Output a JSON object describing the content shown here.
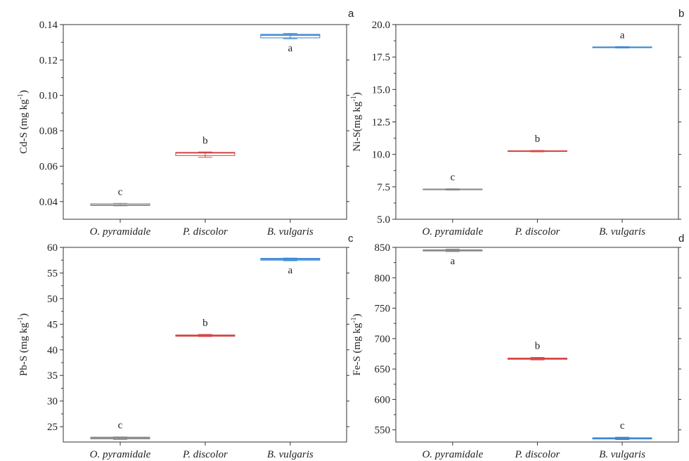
{
  "chart_data": [
    {
      "type": "box",
      "panel": "a",
      "ylabel_main": "Cd-S (mg kg",
      "ylabel_sup": "-1",
      "ylabel_close": ")",
      "categories": [
        "O. pyramidale",
        "P. discolor",
        "B. vulgaris"
      ],
      "ylim": [
        0.03,
        0.14
      ],
      "yticks": [
        "0.04",
        "0.06",
        "0.08",
        "0.10",
        "0.12",
        "0.14"
      ],
      "ytick_values": [
        0.04,
        0.06,
        0.08,
        0.1,
        0.12,
        0.14
      ],
      "boxes": [
        {
          "median": 0.038,
          "q1": 0.0378,
          "q3": 0.0388,
          "min": 0.0376,
          "max": 0.039,
          "color": "#888888",
          "label": "c",
          "label_pos": "above"
        },
        {
          "median": 0.0675,
          "q1": 0.066,
          "q3": 0.0678,
          "min": 0.065,
          "max": 0.068,
          "color": "#d64545",
          "label": "b",
          "label_pos": "above"
        },
        {
          "median": 0.134,
          "q1": 0.1325,
          "q3": 0.1345,
          "min": 0.132,
          "max": 0.135,
          "color": "#3a86d4",
          "label": "a",
          "label_pos": "below"
        }
      ]
    },
    {
      "type": "box",
      "panel": "b",
      "ylabel_main": "Ni-S(mg kg",
      "ylabel_sup": "-1",
      "ylabel_close": ")",
      "categories": [
        "O. pyramidale",
        "P. discolor",
        "B. vulgaris"
      ],
      "ylim": [
        5.0,
        20.0
      ],
      "yticks": [
        "5.0",
        "7.5",
        "10.0",
        "12.5",
        "15.0",
        "17.5",
        "20.0"
      ],
      "ytick_values": [
        5.0,
        7.5,
        10.0,
        12.5,
        15.0,
        17.5,
        20.0
      ],
      "boxes": [
        {
          "median": 7.3,
          "q1": 7.27,
          "q3": 7.33,
          "min": 7.25,
          "max": 7.35,
          "color": "#888888",
          "label": "c",
          "label_pos": "above"
        },
        {
          "median": 10.25,
          "q1": 10.22,
          "q3": 10.28,
          "min": 10.2,
          "max": 10.3,
          "color": "#d64545",
          "label": "b",
          "label_pos": "above"
        },
        {
          "median": 18.25,
          "q1": 18.22,
          "q3": 18.28,
          "min": 18.2,
          "max": 18.3,
          "color": "#3a86d4",
          "label": "a",
          "label_pos": "above"
        }
      ]
    },
    {
      "type": "box",
      "panel": "c",
      "ylabel_main": "Pb-S (mg kg",
      "ylabel_sup": "-1",
      "ylabel_close": ")",
      "categories": [
        "O. pyramidale",
        "P. discolor",
        "B. vulgaris"
      ],
      "ylim": [
        22,
        60
      ],
      "yticks": [
        "25",
        "30",
        "35",
        "40",
        "45",
        "50",
        "55",
        "60"
      ],
      "ytick_values": [
        25,
        30,
        35,
        40,
        45,
        50,
        55,
        60
      ],
      "boxes": [
        {
          "median": 22.8,
          "q1": 22.6,
          "q3": 22.95,
          "min": 22.5,
          "max": 23.0,
          "color": "#888888",
          "label": "c",
          "label_pos": "above"
        },
        {
          "median": 42.8,
          "q1": 42.65,
          "q3": 42.9,
          "min": 42.6,
          "max": 43.0,
          "color": "#d64545",
          "label": "b",
          "label_pos": "above"
        },
        {
          "median": 57.7,
          "q1": 57.5,
          "q3": 57.85,
          "min": 57.4,
          "max": 57.9,
          "color": "#3a86d4",
          "label": "a",
          "label_pos": "below"
        }
      ]
    },
    {
      "type": "box",
      "panel": "d",
      "ylabel_main": "Fe-S (mg kg",
      "ylabel_sup": "-1",
      "ylabel_close": ")",
      "categories": [
        "O. pyramidale",
        "P. discolor",
        "B. vulgaris"
      ],
      "ylim": [
        530,
        850
      ],
      "yticks": [
        "550",
        "600",
        "650",
        "700",
        "750",
        "800",
        "850"
      ],
      "ytick_values": [
        550,
        600,
        650,
        700,
        750,
        800,
        850
      ],
      "boxes": [
        {
          "median": 845,
          "q1": 844,
          "q3": 846,
          "min": 843,
          "max": 847,
          "color": "#888888",
          "label": "a",
          "label_pos": "below"
        },
        {
          "median": 667,
          "q1": 666,
          "q3": 668,
          "min": 665,
          "max": 669,
          "color": "#d64545",
          "label": "b",
          "label_pos": "above"
        },
        {
          "median": 536,
          "q1": 535,
          "q3": 537,
          "min": 534,
          "max": 538,
          "color": "#3a86d4",
          "label": "c",
          "label_pos": "above"
        }
      ]
    }
  ]
}
